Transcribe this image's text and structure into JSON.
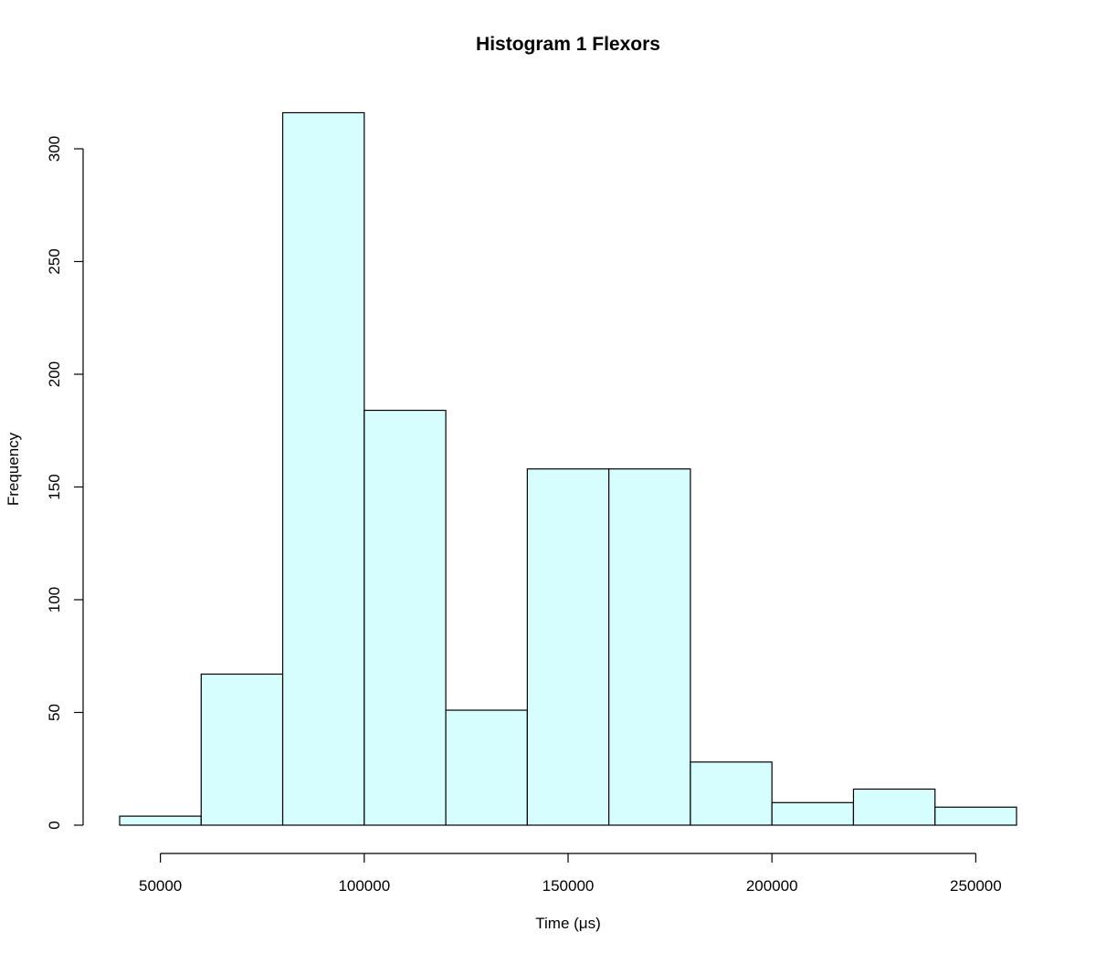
{
  "chart_data": {
    "type": "bar",
    "title": "Histogram  1 Flexors",
    "xlabel": "Time (μs)",
    "ylabel": "Frequency",
    "bin_edges": [
      40000,
      60000,
      80000,
      100000,
      120000,
      140000,
      160000,
      180000,
      200000,
      220000,
      240000,
      260000
    ],
    "values": [
      4,
      67,
      316,
      184,
      51,
      158,
      158,
      28,
      10,
      16,
      8
    ],
    "xlim": [
      40000,
      260000
    ],
    "ylim": [
      0,
      300
    ],
    "x_ticks": [
      50000,
      100000,
      150000,
      200000,
      250000
    ],
    "x_tick_labels": [
      "50000",
      "100000",
      "150000",
      "200000",
      "250000"
    ],
    "y_ticks": [
      0,
      50,
      100,
      150,
      200,
      250,
      300
    ],
    "y_tick_labels": [
      "0",
      "50",
      "100",
      "150",
      "200",
      "250",
      "300"
    ],
    "grid": false,
    "bar_color": "#d6fefe",
    "edge_color": "#000000"
  }
}
